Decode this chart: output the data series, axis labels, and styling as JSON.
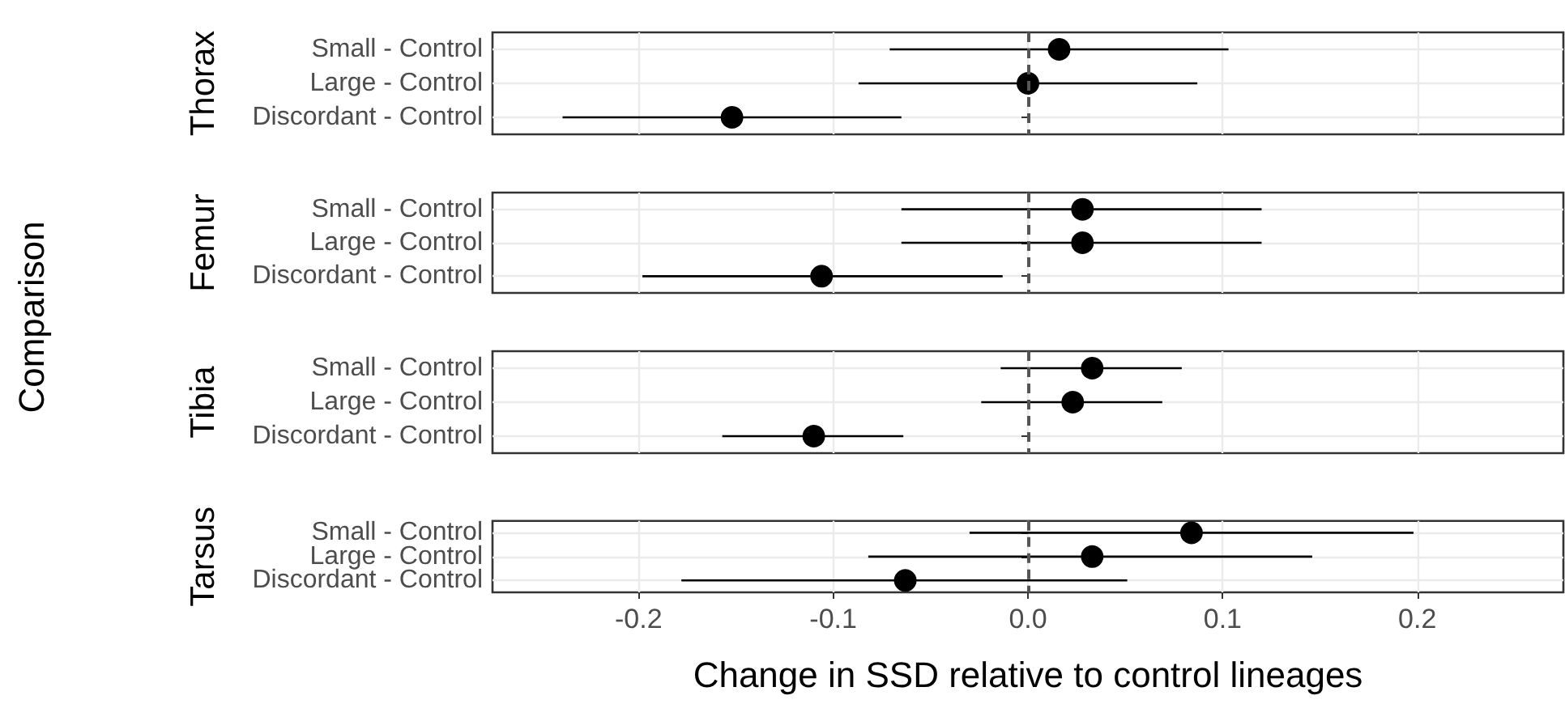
{
  "chart_data": [
    {
      "type": "scatter",
      "orientation": "horizontal",
      "title": "Thorax",
      "ylabel": "Comparison",
      "categories": [
        "Small - Control",
        "Large - Control",
        "Discordant - Control"
      ],
      "color": "#000000",
      "marker": "circle",
      "values": [
        0.016,
        0.0,
        -0.152
      ],
      "errors": [
        [
          -0.071,
          0.103
        ],
        [
          -0.087,
          0.087
        ],
        [
          -0.239,
          -0.065
        ]
      ],
      "xlim": [
        -0.275,
        0.275
      ],
      "xticks": [
        -0.2,
        -0.1,
        0.0,
        0.1,
        0.2
      ],
      "tick_labels": "y",
      "grid": true,
      "ref_lines": [
        {
          "axis": "x",
          "value": 0,
          "line_style": "dashed",
          "color": "#555555"
        }
      ]
    },
    {
      "type": "scatter",
      "orientation": "horizontal",
      "title": "Femur",
      "categories": [
        "Small - Control",
        "Large - Control",
        "Discordant - Control"
      ],
      "color": "#000000",
      "marker": "circle",
      "values": [
        0.028,
        0.028,
        -0.106
      ],
      "errors": [
        [
          -0.065,
          0.12
        ],
        [
          -0.065,
          0.12
        ],
        [
          -0.198,
          -0.013
        ]
      ],
      "xlim": [
        -0.275,
        0.275
      ],
      "xticks": [
        -0.2,
        -0.1,
        0.0,
        0.1,
        0.2
      ],
      "tick_labels": "y",
      "grid": true,
      "ref_lines": [
        {
          "axis": "x",
          "value": 0,
          "line_style": "dashed",
          "color": "#555555"
        }
      ]
    },
    {
      "type": "scatter",
      "orientation": "horizontal",
      "title": "Tibia",
      "categories": [
        "Small - Control",
        "Large - Control",
        "Discordant - Control"
      ],
      "color": "#000000",
      "marker": "circle",
      "values": [
        0.033,
        0.023,
        -0.11
      ],
      "errors": [
        [
          -0.014,
          0.079
        ],
        [
          -0.024,
          0.069
        ],
        [
          -0.157,
          -0.064
        ]
      ],
      "xlim": [
        -0.275,
        0.275
      ],
      "xticks": [
        -0.2,
        -0.1,
        0.0,
        0.1,
        0.2
      ],
      "tick_labels": "y",
      "grid": true,
      "ref_lines": [
        {
          "axis": "x",
          "value": 0,
          "line_style": "dashed",
          "color": "#555555"
        }
      ]
    },
    {
      "type": "scatter",
      "orientation": "horizontal",
      "title": "Tarsus",
      "xlabel": "Change in SSD relative to control lineages",
      "categories": [
        "Small - Control",
        "Large - Control",
        "Discordant - Control"
      ],
      "color": "#000000",
      "marker": "circle",
      "values": [
        0.084,
        0.033,
        -0.063
      ],
      "errors": [
        [
          -0.03,
          0.198
        ],
        [
          -0.082,
          0.146
        ],
        [
          -0.178,
          0.051
        ]
      ],
      "xlim": [
        -0.275,
        0.275
      ],
      "xticks": [
        {
          "value": -0.2,
          "label": "-0.2"
        },
        {
          "value": -0.1,
          "label": "-0.1"
        },
        {
          "value": 0.0,
          "label": "0.0"
        },
        {
          "value": 0.1,
          "label": "0.1"
        },
        {
          "value": 0.2,
          "label": "0.2"
        }
      ],
      "grid": true,
      "ref_lines": [
        {
          "axis": "x",
          "value": 0,
          "line_style": "dashed",
          "color": "#555555"
        }
      ]
    }
  ]
}
